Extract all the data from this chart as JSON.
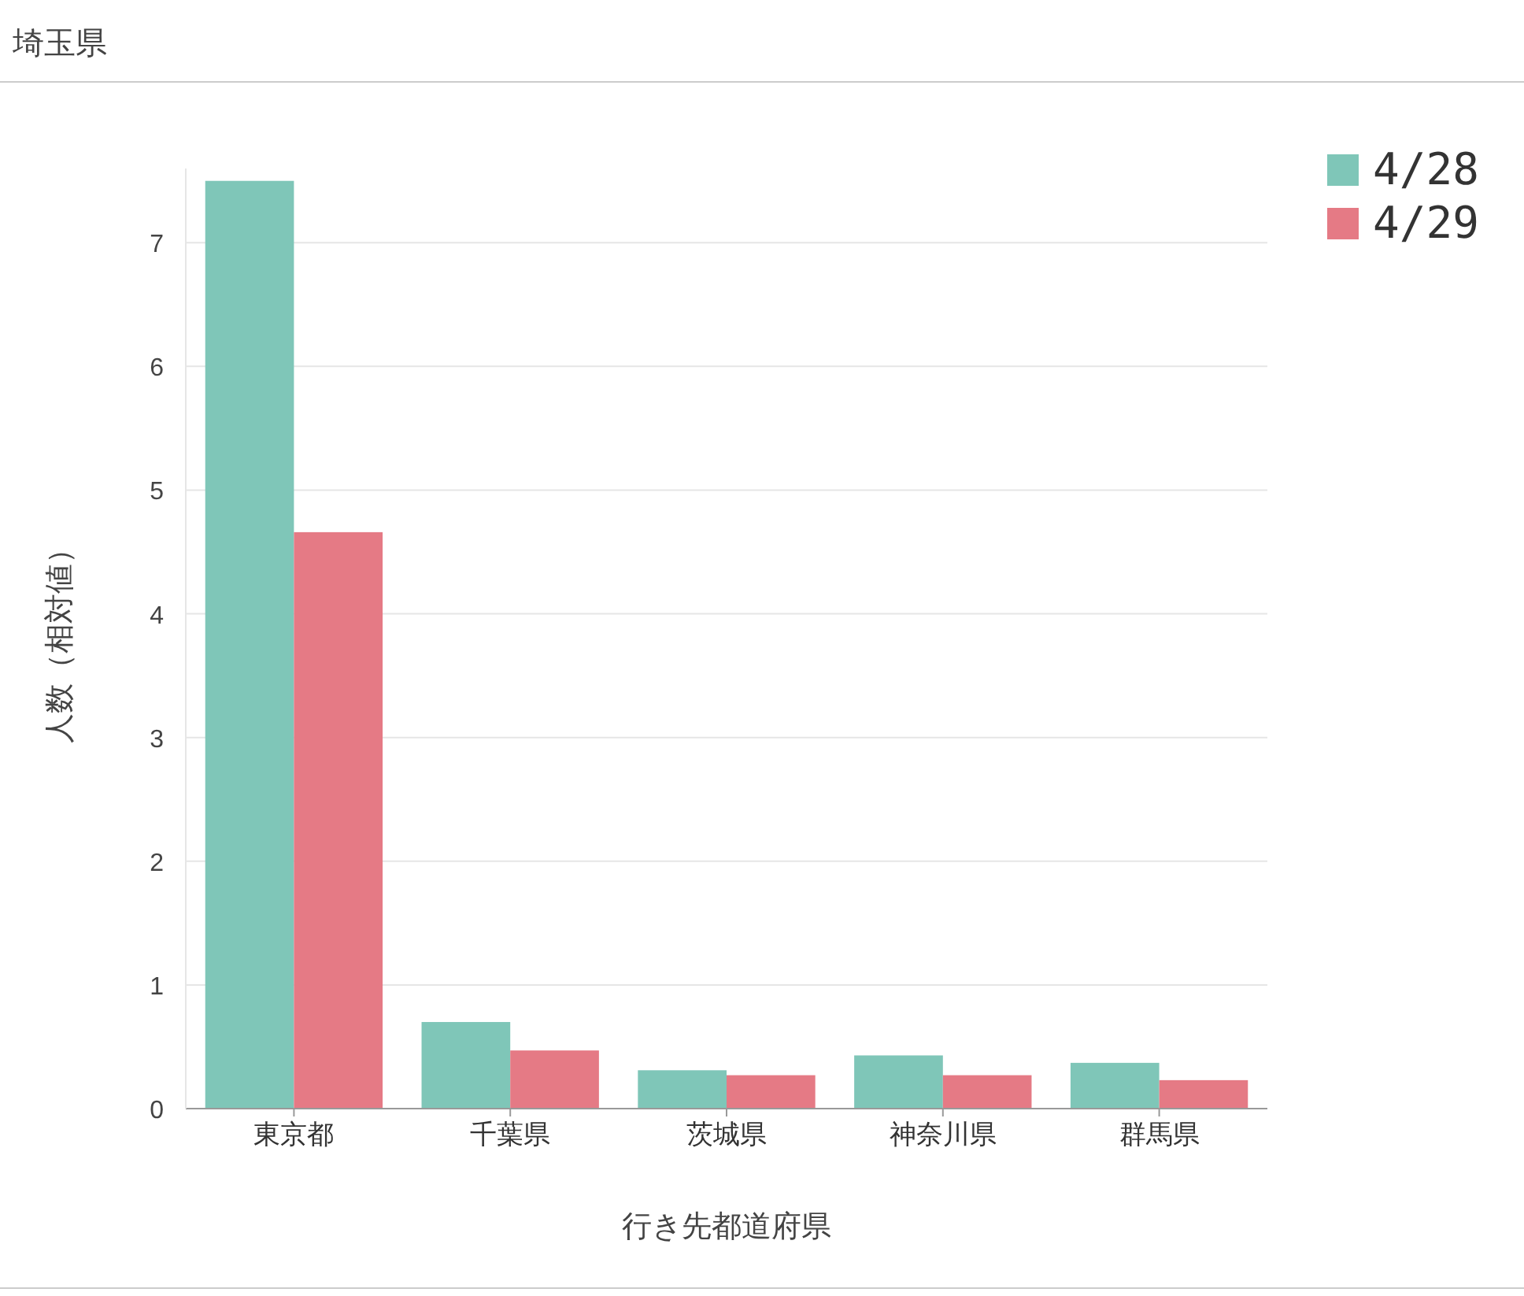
{
  "chart_data": {
    "type": "bar",
    "title": "埼玉県",
    "xlabel": "行き先都道府県",
    "ylabel": "人数（相対値）",
    "categories": [
      "東京都",
      "千葉県",
      "茨城県",
      "神奈川県",
      "群馬県"
    ],
    "series": [
      {
        "name": "4/28",
        "color": "#7fc6b8",
        "values": [
          7.5,
          0.7,
          0.31,
          0.43,
          0.37
        ]
      },
      {
        "name": "4/29",
        "color": "#e57a85",
        "values": [
          4.66,
          0.47,
          0.27,
          0.27,
          0.23
        ]
      }
    ],
    "ylim": [
      0,
      7.6
    ],
    "yticks": [
      0,
      1,
      2,
      3,
      4,
      5,
      6,
      7
    ],
    "grid": "y",
    "legend": "top right"
  }
}
